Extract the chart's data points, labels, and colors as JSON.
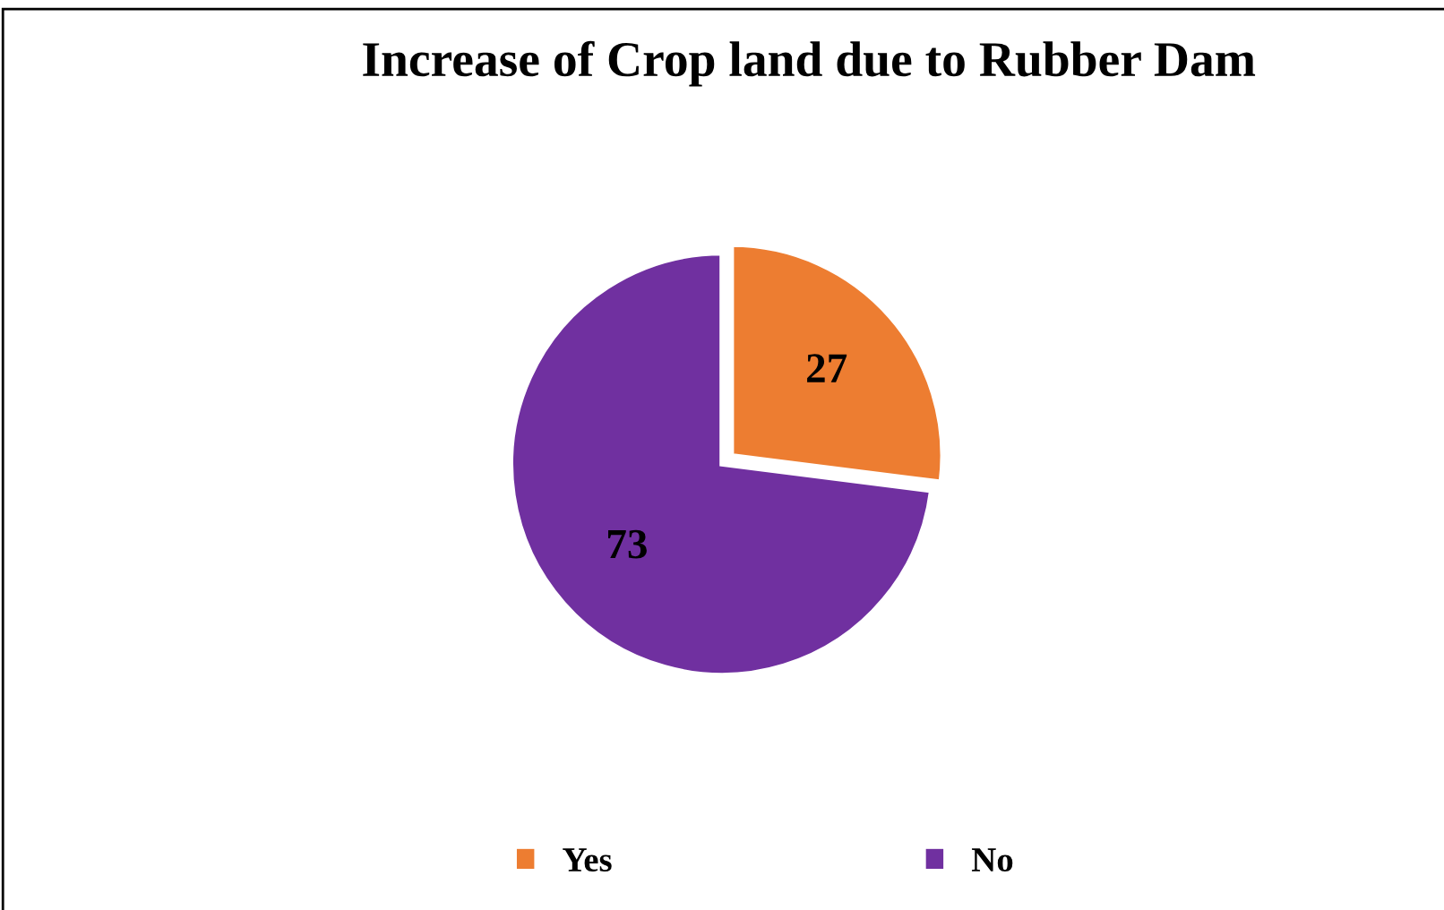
{
  "chart_data": {
    "type": "pie",
    "title": "Increase of Crop land due to Rubber Dam",
    "categories": [
      "Yes",
      "No"
    ],
    "values": [
      27,
      73
    ],
    "colors": [
      "#ed7d31",
      "#7030a0"
    ],
    "data_labels": true,
    "legend": "bottom"
  }
}
